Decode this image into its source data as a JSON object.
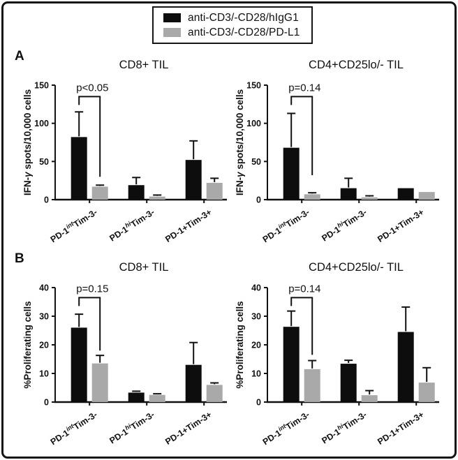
{
  "figure": {
    "legend": {
      "items": [
        {
          "label": "anti-CD3/-CD28/hIgG1",
          "color": "#0d0d0d"
        },
        {
          "label": "anti-CD3/-CD28/PD-L1",
          "color": "#a9a9a9"
        }
      ]
    },
    "panels": [
      {
        "label": "A"
      },
      {
        "label": "B"
      }
    ]
  },
  "chart_data": [
    {
      "type": "bar",
      "panel": "A",
      "title": "CD8+ TIL",
      "ylabel_parts": [
        {
          "t": "IFN-"
        },
        {
          "t": "γ",
          "italic": true
        },
        {
          "t": " spots/10,000 cells"
        }
      ],
      "ylim": [
        0,
        150
      ],
      "yticks": [
        0,
        50,
        100,
        150
      ],
      "grid": false,
      "categories": [
        {
          "pre": "PD-1",
          "sup": "int",
          "post": "Tim-3-"
        },
        {
          "pre": "PD-1",
          "sup": "hi",
          "post": "Tim-3-"
        },
        {
          "pre": "PD-1+Tim-3+",
          "sup": "",
          "post": ""
        }
      ],
      "series": [
        {
          "name": "anti-CD3/-CD28/hIgG1",
          "color": "#0d0d0d",
          "values": [
            82,
            19,
            52
          ],
          "errors": [
            33,
            10,
            25
          ]
        },
        {
          "name": "anti-CD3/-CD28/PD-L1",
          "color": "#a9a9a9",
          "values": [
            17,
            4,
            22
          ],
          "errors": [
            2,
            2,
            6
          ]
        }
      ],
      "significance": {
        "label": "p<0.05",
        "top": 135,
        "drop_to": 30
      }
    },
    {
      "type": "bar",
      "panel": "A",
      "title": "CD4+CD25lo/- TIL",
      "ylabel_parts": [
        {
          "t": "IFN-"
        },
        {
          "t": "γ",
          "italic": true
        },
        {
          "t": " spots/10,000 cells"
        }
      ],
      "ylim": [
        0,
        150
      ],
      "yticks": [
        0,
        50,
        100,
        150
      ],
      "grid": false,
      "categories": [
        {
          "pre": "PD-1",
          "sup": "int",
          "post": "Tim-3-"
        },
        {
          "pre": "PD-1",
          "sup": "hi",
          "post": "Tim-3-"
        },
        {
          "pre": "PD-1+Tim-3+",
          "sup": "",
          "post": ""
        }
      ],
      "series": [
        {
          "name": "anti-CD3/-CD28/hIgG1",
          "color": "#0d0d0d",
          "values": [
            68,
            15,
            15
          ],
          "errors": [
            45,
            13,
            0
          ]
        },
        {
          "name": "anti-CD3/-CD28/PD-L1",
          "color": "#a9a9a9",
          "values": [
            7,
            3,
            10
          ],
          "errors": [
            2,
            2,
            0
          ]
        }
      ],
      "significance": {
        "label": "p=0.14",
        "top": 135,
        "drop_to": 32
      }
    },
    {
      "type": "bar",
      "panel": "B",
      "title": "CD8+ TIL",
      "ylabel_parts": [
        {
          "t": "%Proliferating cells"
        }
      ],
      "ylim": [
        0,
        40
      ],
      "yticks": [
        0,
        10,
        20,
        30,
        40
      ],
      "grid": false,
      "categories": [
        {
          "pre": "PD-1",
          "sup": "int",
          "post": "Tim-3-"
        },
        {
          "pre": "PD-1",
          "sup": "hi",
          "post": "Tim-3-"
        },
        {
          "pre": "PD-1+Tim-3+",
          "sup": "",
          "post": ""
        }
      ],
      "series": [
        {
          "name": "anti-CD3/-CD28/hIgG1",
          "color": "#0d0d0d",
          "values": [
            26,
            3.3,
            13
          ],
          "errors": [
            4.7,
            0.5,
            7.8
          ]
        },
        {
          "name": "anti-CD3/-CD28/PD-L1",
          "color": "#a9a9a9",
          "values": [
            13.5,
            2.5,
            6
          ],
          "errors": [
            2.8,
            0.4,
            0.7
          ]
        }
      ],
      "significance": {
        "label": "p=0.15",
        "top": 36.5,
        "drop_to": 18
      }
    },
    {
      "type": "bar",
      "panel": "B",
      "title": "CD4+CD25lo/- TIL",
      "ylabel_parts": [
        {
          "t": "%Proliferating cells"
        }
      ],
      "ylim": [
        0,
        40
      ],
      "yticks": [
        0,
        10,
        20,
        30,
        40
      ],
      "grid": false,
      "categories": [
        {
          "pre": "PD-1",
          "sup": "int",
          "post": "Tim-3-"
        },
        {
          "pre": "PD-1",
          "sup": "hi",
          "post": "Tim-3-"
        },
        {
          "pre": "PD-1+Tim-3+",
          "sup": "",
          "post": ""
        }
      ],
      "series": [
        {
          "name": "anti-CD3/-CD28/hIgG1",
          "color": "#0d0d0d",
          "values": [
            26.3,
            13.4,
            24.5
          ],
          "errors": [
            5.5,
            1.2,
            8.7
          ]
        },
        {
          "name": "anti-CD3/-CD28/PD-L1",
          "color": "#a9a9a9",
          "values": [
            11.5,
            2.4,
            6.8
          ],
          "errors": [
            3,
            1.6,
            5.2
          ]
        }
      ],
      "significance": {
        "label": "p=0.14",
        "top": 36.5,
        "drop_to": 16.5
      }
    }
  ]
}
